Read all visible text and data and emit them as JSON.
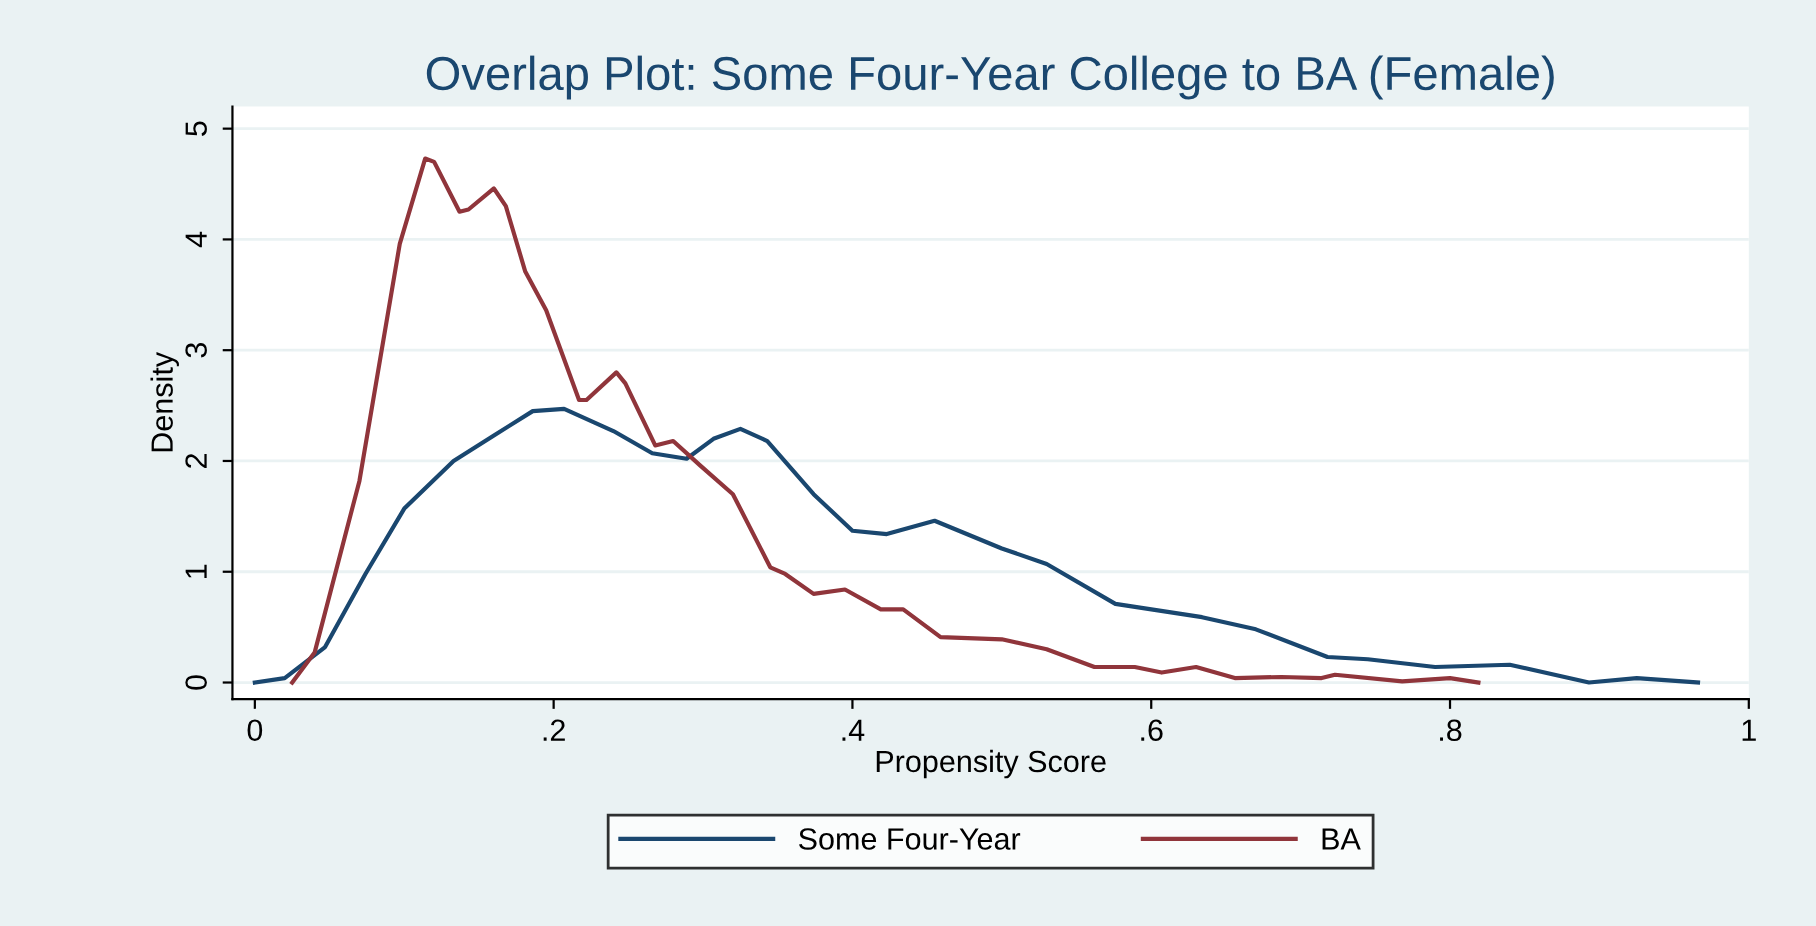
{
  "chart_data": {
    "type": "line",
    "title": "Overlap Plot: Some Four-Year College to BA (Female)",
    "xlabel": "Propensity Score",
    "ylabel": "Density",
    "xlim": [
      -0.015,
      1.0
    ],
    "ylim": [
      -0.15,
      5.2
    ],
    "xticks": [
      0,
      {
        "value": 0.2,
        "label": ".2"
      },
      {
        "value": 0.4,
        "label": ".4"
      },
      {
        "value": 0.6,
        "label": ".6"
      },
      {
        "value": 0.8,
        "label": ".8"
      },
      1
    ],
    "yticks": [
      0,
      1,
      2,
      3,
      4,
      5
    ],
    "grid": "y",
    "legend": "bottom",
    "series": [
      {
        "name": "Some Four-Year",
        "color": "#1a476f",
        "x": [
          0,
          0.02,
          0.047,
          0.074,
          0.1,
          0.133,
          0.16,
          0.186,
          0.207,
          0.24,
          0.266,
          0.289,
          0.307,
          0.325,
          0.343,
          0.374,
          0.4,
          0.423,
          0.455,
          0.5,
          0.53,
          0.576,
          0.634,
          0.67,
          0.718,
          0.745,
          0.79,
          0.84,
          0.893,
          0.925,
          0.966
        ],
        "values": [
          0,
          0.04,
          0.32,
          0.98,
          1.57,
          2.0,
          2.23,
          2.45,
          2.47,
          2.27,
          2.07,
          2.02,
          2.2,
          2.29,
          2.18,
          1.7,
          1.37,
          1.34,
          1.46,
          1.21,
          1.07,
          0.71,
          0.59,
          0.48,
          0.23,
          0.21,
          0.14,
          0.16,
          0,
          0.04,
          0
        ]
      },
      {
        "name": "BA",
        "color": "#90353b",
        "x": [
          0.025,
          0.04,
          0.07,
          0.097,
          0.114,
          0.12,
          0.137,
          0.143,
          0.16,
          0.168,
          0.181,
          0.195,
          0.217,
          0.222,
          0.242,
          0.248,
          0.268,
          0.28,
          0.298,
          0.32,
          0.345,
          0.355,
          0.374,
          0.395,
          0.419,
          0.434,
          0.459,
          0.5,
          0.53,
          0.562,
          0.589,
          0.607,
          0.63,
          0.656,
          0.687,
          0.714,
          0.723,
          0.768,
          0.8,
          0.819
        ],
        "values": [
          0,
          0.27,
          1.82,
          3.96,
          4.73,
          4.7,
          4.25,
          4.27,
          4.46,
          4.3,
          3.71,
          3.36,
          2.55,
          2.55,
          2.8,
          2.7,
          2.14,
          2.18,
          1.96,
          1.7,
          1.04,
          0.98,
          0.8,
          0.84,
          0.66,
          0.66,
          0.41,
          0.39,
          0.3,
          0.14,
          0.14,
          0.09,
          0.14,
          0.04,
          0.05,
          0.04,
          0.07,
          0.01,
          0.04,
          0
        ]
      }
    ]
  }
}
